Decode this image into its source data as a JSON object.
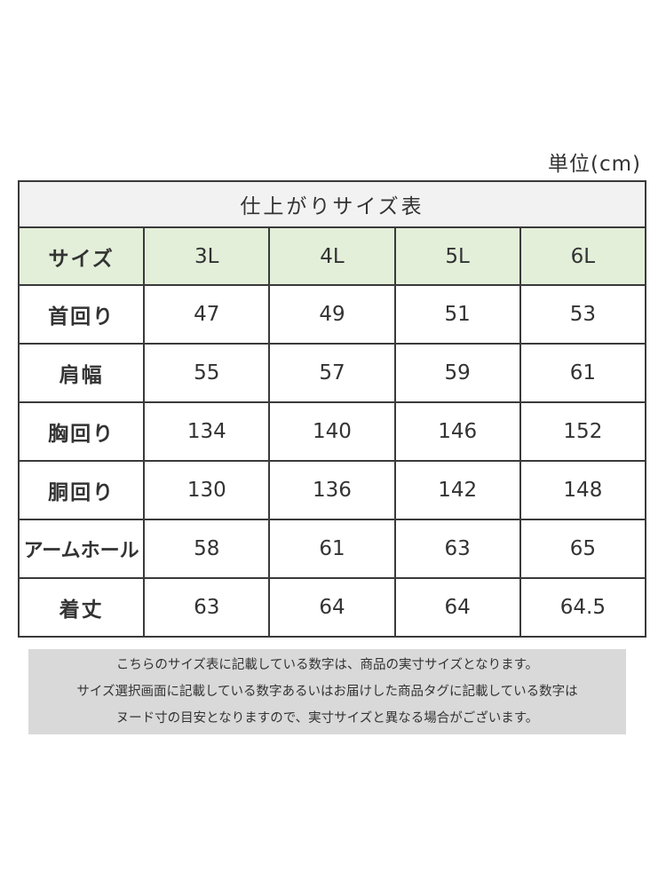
{
  "unit_label": "単位(cm)",
  "table": {
    "title": "仕上がりサイズ表",
    "header": {
      "label": "サイズ",
      "sizes": [
        "3L",
        "4L",
        "5L",
        "6L"
      ]
    },
    "rows": [
      {
        "label": "首回り",
        "values": [
          "47",
          "49",
          "51",
          "53"
        ]
      },
      {
        "label": "肩幅",
        "values": [
          "55",
          "57",
          "59",
          "61"
        ]
      },
      {
        "label": "胸回り",
        "values": [
          "134",
          "140",
          "146",
          "152"
        ]
      },
      {
        "label": "胴回り",
        "values": [
          "130",
          "136",
          "142",
          "148"
        ]
      },
      {
        "label": "アームホール",
        "values": [
          "58",
          "61",
          "63",
          "65"
        ]
      },
      {
        "label": "着丈",
        "values": [
          "63",
          "64",
          "64",
          "64.5"
        ]
      }
    ]
  },
  "notes": [
    "こちらのサイズ表に記載している数字は、商品の実寸サイズとなります。",
    "サイズ選択画面に記載している数字あるいはお届けした商品タグに記載している数字は",
    "ヌード寸の目安となりますので、実寸サイズと異なる場合がございます。"
  ],
  "colors": {
    "title_bg": "#f2f2f2",
    "header_bg": "#e3efd9",
    "note_bg": "#d9d9d9",
    "border": "#3a3a3a",
    "text": "#333333"
  }
}
